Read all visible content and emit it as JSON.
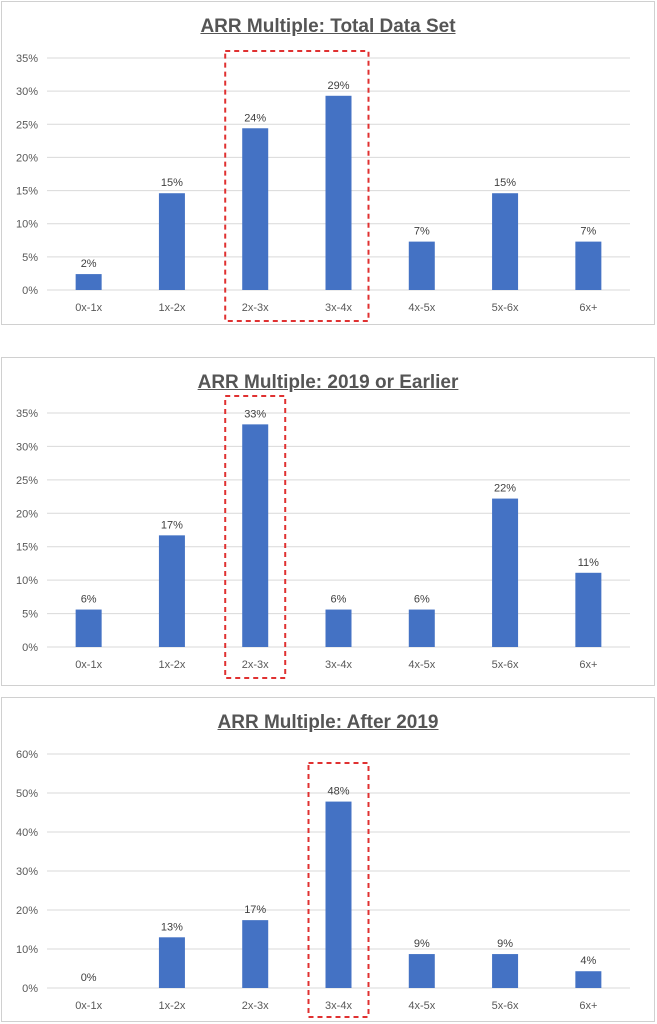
{
  "colors": {
    "bar": "#4472C4",
    "grid": "#D9D9D9",
    "highlight": "#E03131"
  },
  "chart_data": [
    {
      "type": "bar",
      "title": "ARR Multiple: Total Data Set",
      "categories": [
        "0x-1x",
        "1x-2x",
        "2x-3x",
        "3x-4x",
        "4x-5x",
        "5x-6x",
        "6x+"
      ],
      "values": [
        0.024,
        0.146,
        0.244,
        0.293,
        0.073,
        0.146,
        0.073
      ],
      "data_labels": [
        "2%",
        "15%",
        "24%",
        "29%",
        "7%",
        "15%",
        "7%"
      ],
      "yticks": [
        "0%",
        "5%",
        "10%",
        "15%",
        "20%",
        "25%",
        "30%",
        "35%"
      ],
      "ylim": [
        0,
        0.35
      ],
      "grid": true,
      "highlight_categories": [
        "2x-3x",
        "3x-4x"
      ]
    },
    {
      "type": "bar",
      "title": "ARR Multiple: 2019 or Earlier",
      "categories": [
        "0x-1x",
        "1x-2x",
        "2x-3x",
        "3x-4x",
        "4x-5x",
        "5x-6x",
        "6x+"
      ],
      "values": [
        0.056,
        0.167,
        0.333,
        0.056,
        0.056,
        0.222,
        0.111
      ],
      "data_labels": [
        "6%",
        "17%",
        "33%",
        "6%",
        "6%",
        "22%",
        "11%"
      ],
      "yticks": [
        "0%",
        "5%",
        "10%",
        "15%",
        "20%",
        "25%",
        "30%",
        "35%"
      ],
      "ylim": [
        0,
        0.35
      ],
      "grid": true,
      "highlight_categories": [
        "2x-3x"
      ]
    },
    {
      "type": "bar",
      "title": "ARR Multiple: After 2019",
      "categories": [
        "0x-1x",
        "1x-2x",
        "2x-3x",
        "3x-4x",
        "4x-5x",
        "5x-6x",
        "6x+"
      ],
      "values": [
        0.0,
        0.13,
        0.174,
        0.478,
        0.087,
        0.087,
        0.043
      ],
      "data_labels": [
        "0%",
        "13%",
        "17%",
        "48%",
        "9%",
        "9%",
        "4%"
      ],
      "yticks": [
        "0%",
        "10%",
        "20%",
        "30%",
        "40%",
        "50%",
        "60%"
      ],
      "ylim": [
        0,
        0.6
      ],
      "grid": true,
      "highlight_categories": [
        "3x-4x"
      ]
    }
  ]
}
